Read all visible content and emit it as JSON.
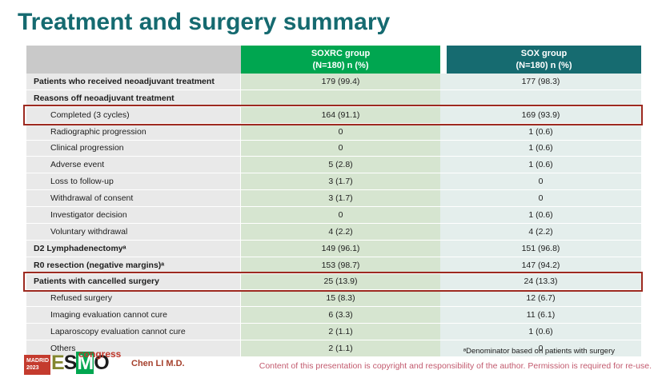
{
  "title": "Treatment and surgery summary",
  "table": {
    "col_soxrc": {
      "line1": "SOXRC group",
      "line2": "(N=180) n (%)"
    },
    "col_sox": {
      "line1": "SOX group",
      "line2": "(N=180) n (%)"
    },
    "rows": [
      {
        "label": "Patients who received neoadjuvant treatment",
        "soxrc": "179 (99.4)",
        "sox": "177 (98.3)",
        "bold": true,
        "indent": false,
        "highlight": false
      },
      {
        "label": "Reasons off neoadjuvant treatment",
        "soxrc": "",
        "sox": "",
        "bold": true,
        "indent": false,
        "highlight": false
      },
      {
        "label": "Completed (3 cycles)",
        "soxrc": "164 (91.1)",
        "sox": "169 (93.9)",
        "bold": false,
        "indent": true,
        "highlight": true
      },
      {
        "label": "Radiographic progression",
        "soxrc": "0",
        "sox": "1 (0.6)",
        "bold": false,
        "indent": true,
        "highlight": false
      },
      {
        "label": "Clinical progression",
        "soxrc": "0",
        "sox": "1 (0.6)",
        "bold": false,
        "indent": true,
        "highlight": false
      },
      {
        "label": "Adverse event",
        "soxrc": "5 (2.8)",
        "sox": "1 (0.6)",
        "bold": false,
        "indent": true,
        "highlight": false
      },
      {
        "label": "Loss to follow-up",
        "soxrc": "3 (1.7)",
        "sox": "0",
        "bold": false,
        "indent": true,
        "highlight": false
      },
      {
        "label": "Withdrawal of consent",
        "soxrc": "3 (1.7)",
        "sox": "0",
        "bold": false,
        "indent": true,
        "highlight": false
      },
      {
        "label": "Investigator decision",
        "soxrc": "0",
        "sox": "1 (0.6)",
        "bold": false,
        "indent": true,
        "highlight": false
      },
      {
        "label": "Voluntary withdrawal",
        "soxrc": "4 (2.2)",
        "sox": "4 (2.2)",
        "bold": false,
        "indent": true,
        "highlight": false
      },
      {
        "label": "D2 Lymphadenectomyᵃ",
        "soxrc": "149 (96.1)",
        "sox": "151 (96.8)",
        "bold": true,
        "indent": false,
        "highlight": false
      },
      {
        "label": "R0 resection (negative margins)ᵃ",
        "soxrc": "153 (98.7)",
        "sox": "147 (94.2)",
        "bold": true,
        "indent": false,
        "highlight": false
      },
      {
        "label": "Patients with cancelled surgery",
        "soxrc": "25 (13.9)",
        "sox": "24 (13.3)",
        "bold": true,
        "indent": false,
        "highlight": true
      },
      {
        "label": "Refused surgery",
        "soxrc": "15 (8.3)",
        "sox": "12 (6.7)",
        "bold": false,
        "indent": true,
        "highlight": false
      },
      {
        "label": "Imaging evaluation cannot cure",
        "soxrc": "6 (3.3)",
        "sox": "11 (6.1)",
        "bold": false,
        "indent": true,
        "highlight": false
      },
      {
        "label": "Laparoscopy evaluation cannot cure",
        "soxrc": "2 (1.1)",
        "sox": "1 (0.6)",
        "bold": false,
        "indent": true,
        "highlight": false
      },
      {
        "label": "Others",
        "soxrc": "2 (1.1)",
        "sox": "0",
        "bold": false,
        "indent": true,
        "highlight": false
      }
    ]
  },
  "footer": {
    "footnote": "ᵃDenominator based on patients with surgery",
    "author": "Chen LI M.D.",
    "copyright": "Content of this presentation is copyright and responsibility of the author. Permission is required for re-use.",
    "logo": {
      "city": "MADRID",
      "year": "2023",
      "esmo_e": "E",
      "esmo_s": "S",
      "esmo_m": "M",
      "esmo_o": "O",
      "congress": "congress"
    }
  },
  "colors": {
    "title_teal": "#156a70",
    "header_green": "#00a650",
    "header_teal": "#166b70",
    "body_green": "#d6e5d0",
    "body_blue": "#e4eeec",
    "label_gray": "#e9e9e9",
    "highlight_red": "#9d2a20",
    "author_red": "#a5402c",
    "copyright_pink": "#c25a6e",
    "logo_red": "#c43b2e"
  }
}
